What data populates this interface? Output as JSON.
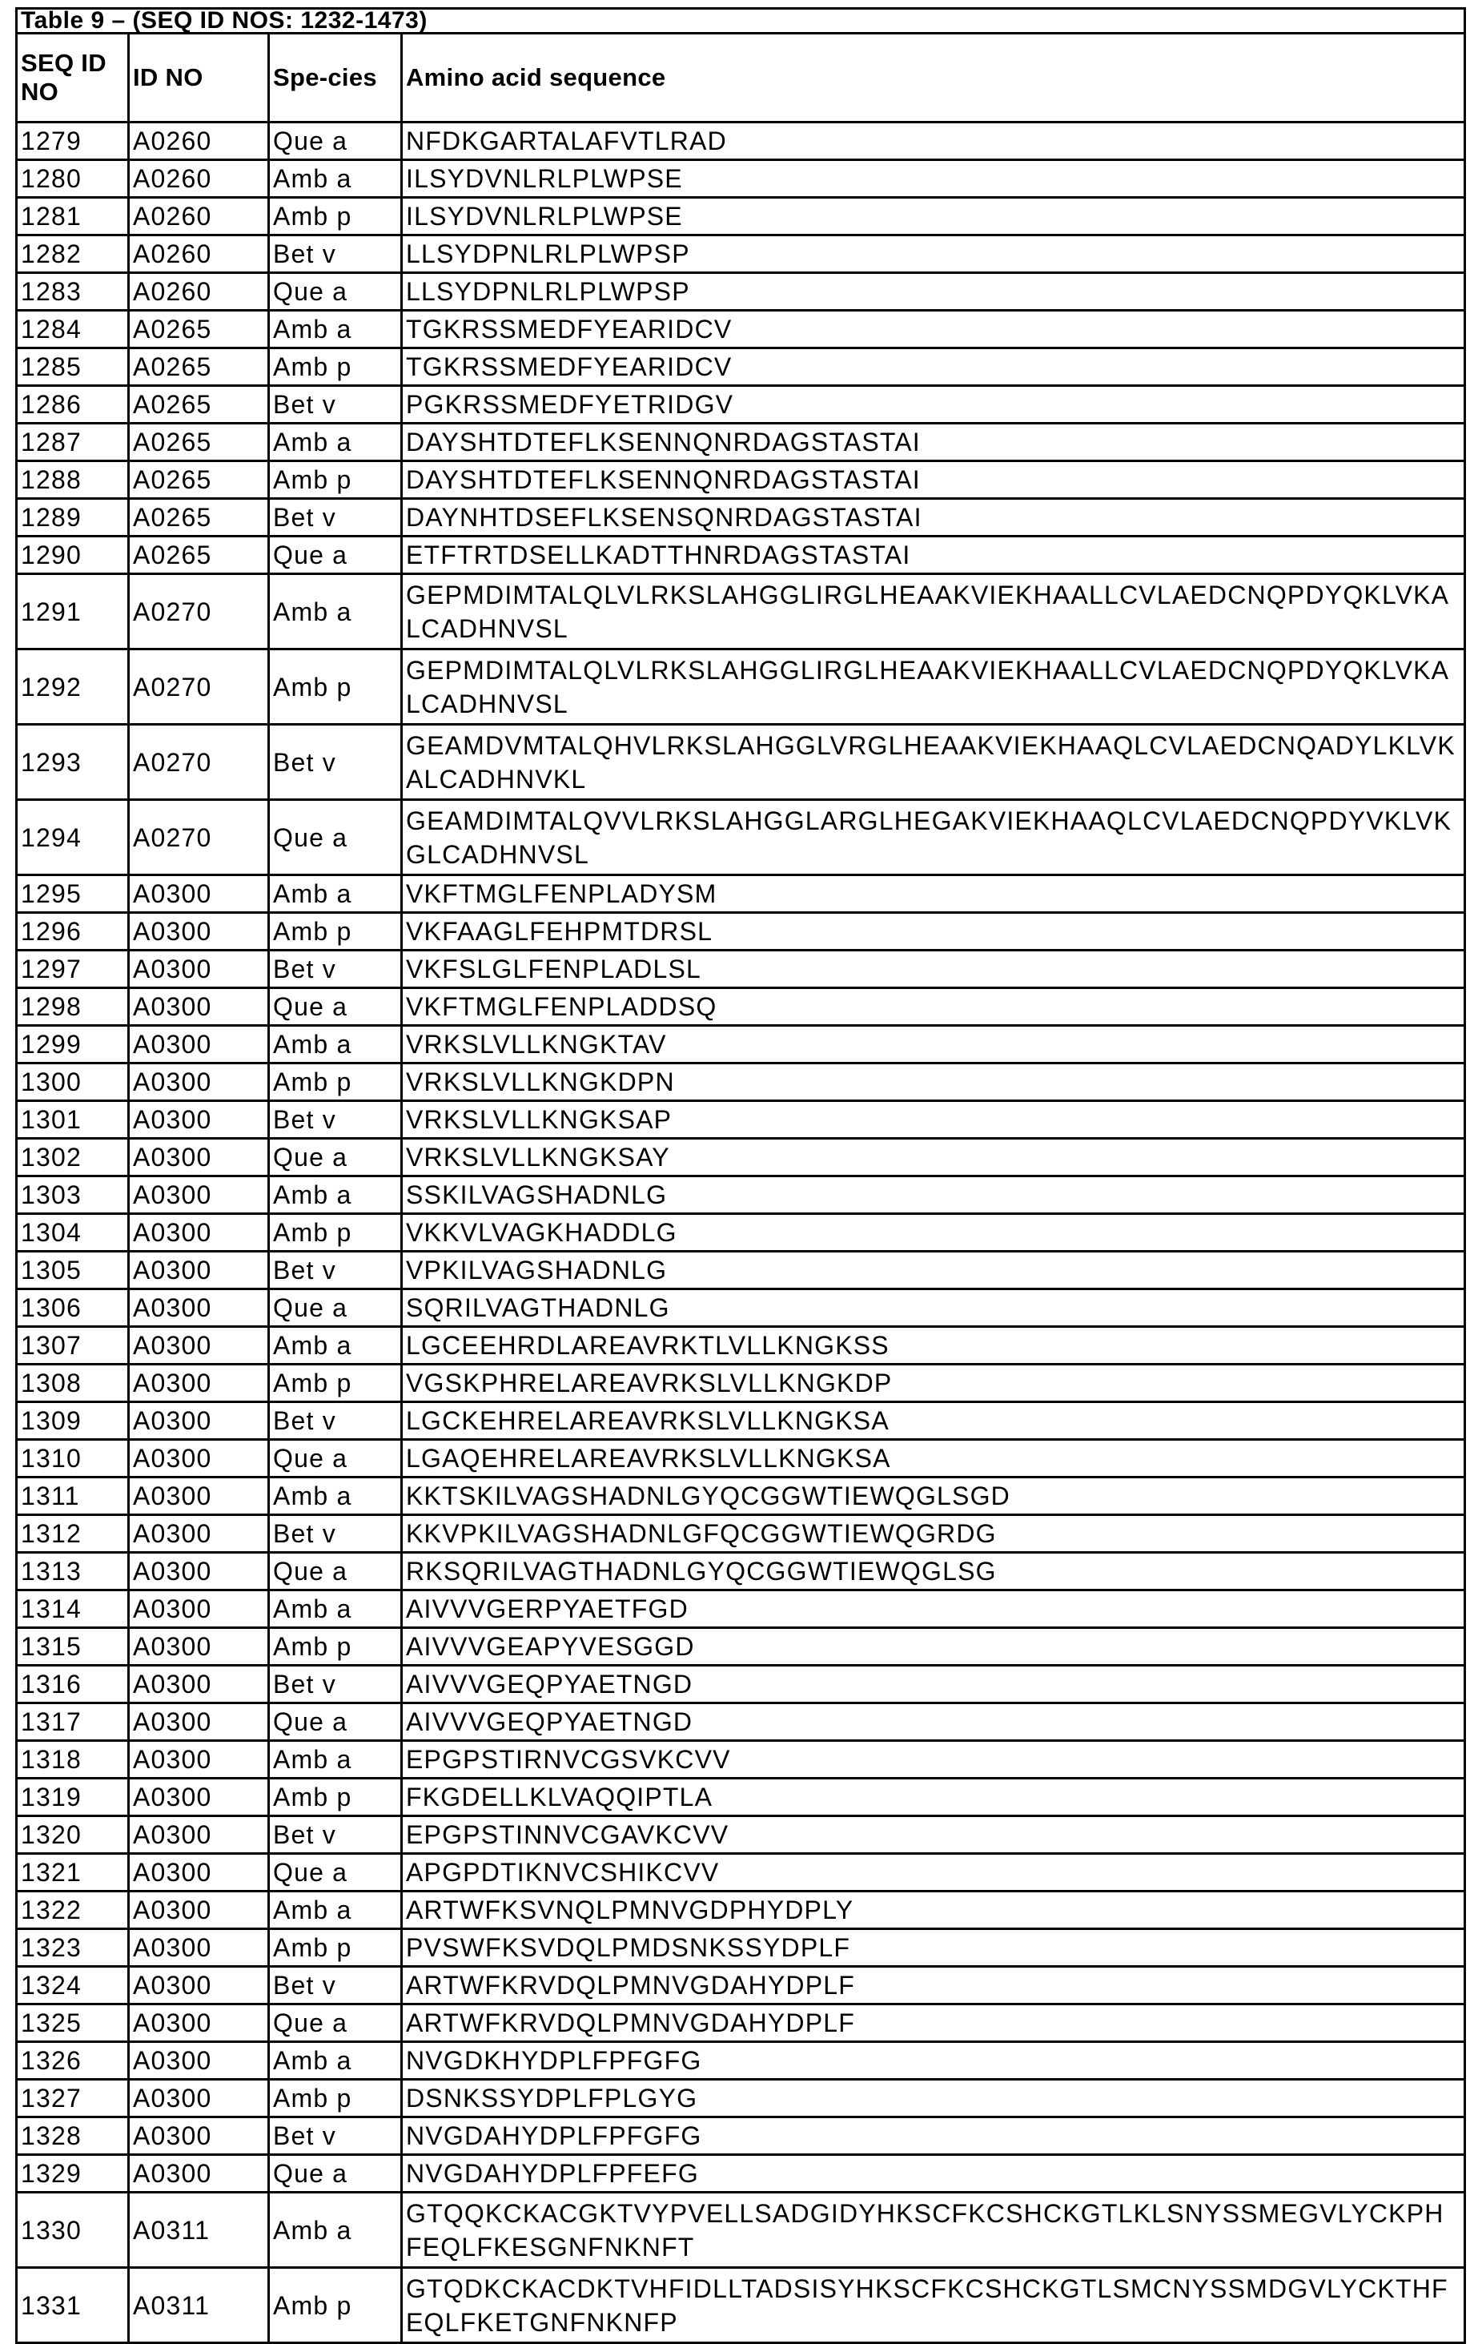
{
  "table": {
    "title": "Table 9 – (SEQ ID NOS: 1232-1473)",
    "headers": [
      "SEQ ID NO",
      "ID NO",
      "Spe-cies",
      "Amino acid sequence"
    ],
    "rows": [
      {
        "seq_id": "1279",
        "id_no": "A0260",
        "species": "Que a",
        "sequence": "NFDKGARTALAFVTLRAD"
      },
      {
        "seq_id": "1280",
        "id_no": "A0260",
        "species": "Amb a",
        "sequence": "ILSYDVNLRLPLWPSE"
      },
      {
        "seq_id": "1281",
        "id_no": "A0260",
        "species": "Amb p",
        "sequence": "ILSYDVNLRLPLWPSE"
      },
      {
        "seq_id": "1282",
        "id_no": "A0260",
        "species": "Bet v",
        "sequence": "LLSYDPNLRLPLWPSP"
      },
      {
        "seq_id": "1283",
        "id_no": "A0260",
        "species": "Que a",
        "sequence": "LLSYDPNLRLPLWPSP"
      },
      {
        "seq_id": "1284",
        "id_no": "A0265",
        "species": "Amb a",
        "sequence": "TGKRSSMEDFYEARIDCV"
      },
      {
        "seq_id": "1285",
        "id_no": "A0265",
        "species": "Amb p",
        "sequence": "TGKRSSMEDFYEARIDCV"
      },
      {
        "seq_id": "1286",
        "id_no": "A0265",
        "species": "Bet v",
        "sequence": "PGKRSSMEDFYETRIDGV"
      },
      {
        "seq_id": "1287",
        "id_no": "A0265",
        "species": "Amb a",
        "sequence": "DAYSHTDTEFLKSENNQNRDAGSTASTAI"
      },
      {
        "seq_id": "1288",
        "id_no": "A0265",
        "species": "Amb p",
        "sequence": "DAYSHTDTEFLKSENNQNRDAGSTASTAI"
      },
      {
        "seq_id": "1289",
        "id_no": "A0265",
        "species": "Bet v",
        "sequence": "DAYNHTDSEFLKSENSQNRDAGSTASTAI"
      },
      {
        "seq_id": "1290",
        "id_no": "A0265",
        "species": "Que a",
        "sequence": "ETFTRTDSELLKADTTHNRDAGSTASTAI"
      },
      {
        "seq_id": "1291",
        "id_no": "A0270",
        "species": "Amb a",
        "sequence": "GEPMDIMTALQLVLRKSLAHGGLIRGLHEAAKVIEKHAALLCVLAEDCNQPDYQKLVKALCADHNVSL"
      },
      {
        "seq_id": "1292",
        "id_no": "A0270",
        "species": "Amb p",
        "sequence": "GEPMDIMTALQLVLRKSLAHGGLIRGLHEAAKVIEKHAALLCVLAEDCNQPDYQKLVKALCADHNVSL"
      },
      {
        "seq_id": "1293",
        "id_no": "A0270",
        "species": "Bet v",
        "sequence": "GEAMDVMTALQHVLRKSLAHGGLVRGLHEAAKVIEKHAAQLCVLAEDCNQADYLKLVKALCADHNVKL"
      },
      {
        "seq_id": "1294",
        "id_no": "A0270",
        "species": "Que a",
        "sequence": "GEAMDIMTALQVVLRKSLAHGGLARGLHEGAKVIEKHAAQLCVLAEDCNQPDYVKLVKGLCADHNVSL"
      },
      {
        "seq_id": "1295",
        "id_no": "A0300",
        "species": "Amb a",
        "sequence": "VKFTMGLFENPLADYSM"
      },
      {
        "seq_id": "1296",
        "id_no": "A0300",
        "species": "Amb p",
        "sequence": "VKFAAGLFEHPMTDRSL"
      },
      {
        "seq_id": "1297",
        "id_no": "A0300",
        "species": "Bet v",
        "sequence": "VKFSLGLFENPLADLSL"
      },
      {
        "seq_id": "1298",
        "id_no": "A0300",
        "species": "Que a",
        "sequence": "VKFTMGLFENPLADDSQ"
      },
      {
        "seq_id": "1299",
        "id_no": "A0300",
        "species": "Amb a",
        "sequence": "VRKSLVLLKNGKTAV"
      },
      {
        "seq_id": "1300",
        "id_no": "A0300",
        "species": "Amb p",
        "sequence": "VRKSLVLLKNGKDPN"
      },
      {
        "seq_id": "1301",
        "id_no": "A0300",
        "species": "Bet v",
        "sequence": "VRKSLVLLKNGKSAP"
      },
      {
        "seq_id": "1302",
        "id_no": "A0300",
        "species": "Que a",
        "sequence": "VRKSLVLLKNGKSAY"
      },
      {
        "seq_id": "1303",
        "id_no": "A0300",
        "species": "Amb a",
        "sequence": "SSKILVAGSHADNLG"
      },
      {
        "seq_id": "1304",
        "id_no": "A0300",
        "species": "Amb p",
        "sequence": "VKKVLVAGKHADDLG"
      },
      {
        "seq_id": "1305",
        "id_no": "A0300",
        "species": "Bet v",
        "sequence": "VPKILVAGSHADNLG"
      },
      {
        "seq_id": "1306",
        "id_no": "A0300",
        "species": "Que a",
        "sequence": "SQRILVAGTHADNLG"
      },
      {
        "seq_id": "1307",
        "id_no": "A0300",
        "species": "Amb a",
        "sequence": "LGCEEHRDLAREAVRKTLVLLKNGKSS"
      },
      {
        "seq_id": "1308",
        "id_no": "A0300",
        "species": "Amb p",
        "sequence": "VGSKPHRELAREAVRKSLVLLKNGKDP"
      },
      {
        "seq_id": "1309",
        "id_no": "A0300",
        "species": "Bet v",
        "sequence": "LGCKEHRELAREAVRKSLVLLKNGKSA"
      },
      {
        "seq_id": "1310",
        "id_no": "A0300",
        "species": "Que a",
        "sequence": "LGAQEHRELAREAVRKSLVLLKNGKSA"
      },
      {
        "seq_id": "1311",
        "id_no": "A0300",
        "species": "Amb a",
        "sequence": "KKTSKILVAGSHADNLGYQCGGWTIEWQGLSGD"
      },
      {
        "seq_id": "1312",
        "id_no": "A0300",
        "species": "Bet v",
        "sequence": "KKVPKILVAGSHADNLGFQCGGWTIEWQGRDG"
      },
      {
        "seq_id": "1313",
        "id_no": "A0300",
        "species": "Que a",
        "sequence": "RKSQRILVAGTHADNLGYQCGGWTIEWQGLSG"
      },
      {
        "seq_id": "1314",
        "id_no": "A0300",
        "species": "Amb a",
        "sequence": "AIVVVGERPYAETFGD"
      },
      {
        "seq_id": "1315",
        "id_no": "A0300",
        "species": "Amb p",
        "sequence": "AIVVVGEAPYVESGGD"
      },
      {
        "seq_id": "1316",
        "id_no": "A0300",
        "species": "Bet v",
        "sequence": "AIVVVGEQPYAETNGD"
      },
      {
        "seq_id": "1317",
        "id_no": "A0300",
        "species": "Que a",
        "sequence": "AIVVVGEQPYAETNGD"
      },
      {
        "seq_id": "1318",
        "id_no": "A0300",
        "species": "Amb a",
        "sequence": "EPGPSTIRNVCGSVKCVV"
      },
      {
        "seq_id": "1319",
        "id_no": "A0300",
        "species": "Amb p",
        "sequence": "FKGDELLKLVAQQIPTLA"
      },
      {
        "seq_id": "1320",
        "id_no": "A0300",
        "species": "Bet v",
        "sequence": "EPGPSTINNVCGAVKCVV"
      },
      {
        "seq_id": "1321",
        "id_no": "A0300",
        "species": "Que a",
        "sequence": "APGPDTIKNVCSHIKCVV"
      },
      {
        "seq_id": "1322",
        "id_no": "A0300",
        "species": "Amb a",
        "sequence": "ARTWFKSVNQLPMNVGDPHYDPLY"
      },
      {
        "seq_id": "1323",
        "id_no": "A0300",
        "species": "Amb p",
        "sequence": "PVSWFKSVDQLPMDSNKSSYDPLF"
      },
      {
        "seq_id": "1324",
        "id_no": "A0300",
        "species": "Bet v",
        "sequence": "ARTWFKRVDQLPMNVGDAHYDPLF"
      },
      {
        "seq_id": "1325",
        "id_no": "A0300",
        "species": "Que a",
        "sequence": "ARTWFKRVDQLPMNVGDAHYDPLF"
      },
      {
        "seq_id": "1326",
        "id_no": "A0300",
        "species": "Amb a",
        "sequence": "NVGDKHYDPLFPFGFG"
      },
      {
        "seq_id": "1327",
        "id_no": "A0300",
        "species": "Amb p",
        "sequence": "DSNKSSYDPLFPLGYG"
      },
      {
        "seq_id": "1328",
        "id_no": "A0300",
        "species": "Bet v",
        "sequence": "NVGDAHYDPLFPFGFG"
      },
      {
        "seq_id": "1329",
        "id_no": "A0300",
        "species": "Que a",
        "sequence": "NVGDAHYDPLFPFEFG"
      },
      {
        "seq_id": "1330",
        "id_no": "A0311",
        "species": "Amb a",
        "sequence": "GTQQKCKACGKTVYPVELLSADGIDYHKSCFKCSHCKGTLKLSNYSSMEGVLYCKPHFEQLFKESGNFNKNFT"
      },
      {
        "seq_id": "1331",
        "id_no": "A0311",
        "species": "Amb p",
        "sequence": "GTQDKCKACDKTVHFIDLLTADSISYHKSCFKCSHCKGTLSMCNYSSMDGVLYCKTHFEQLFKETGNFNKNFP"
      }
    ]
  }
}
